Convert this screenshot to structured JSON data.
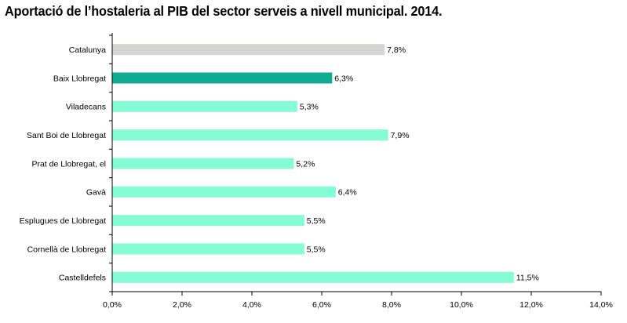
{
  "chart_data": {
    "type": "bar",
    "orientation": "horizontal",
    "title": "Aportació de l’hostaleria al PIB del sector serveis a nivell municipal. 2014.",
    "categories": [
      "Catalunya",
      "Baix Llobregat",
      "Viladecans",
      "Sant Boi de Llobregat",
      "Prat de Llobregat, el",
      "Gavà",
      "Esplugues de Llobregat",
      "Cornellà de Llobregat",
      "Castelldefels"
    ],
    "values": [
      7.8,
      6.3,
      5.3,
      7.9,
      5.2,
      6.4,
      5.5,
      5.5,
      11.5
    ],
    "value_labels": [
      "7,8%",
      "6,3%",
      "5,3%",
      "7,9%",
      "5,2%",
      "6,4%",
      "5,5%",
      "5,5%",
      "11,5%"
    ],
    "colors": [
      "#d3d6d3",
      "#0fac92",
      "#86fcd4",
      "#86fcd4",
      "#86fcd4",
      "#86fcd4",
      "#86fcd4",
      "#86fcd4",
      "#86fcd4"
    ],
    "xlim": [
      0,
      14
    ],
    "xticks": [
      0,
      2,
      4,
      6,
      8,
      10,
      12,
      14
    ],
    "xtick_labels": [
      "0,0%",
      "2,0%",
      "4,0%",
      "6,0%",
      "8,0%",
      "10,0%",
      "12,0%",
      "14,0%"
    ],
    "grid": false,
    "legend": "none"
  }
}
